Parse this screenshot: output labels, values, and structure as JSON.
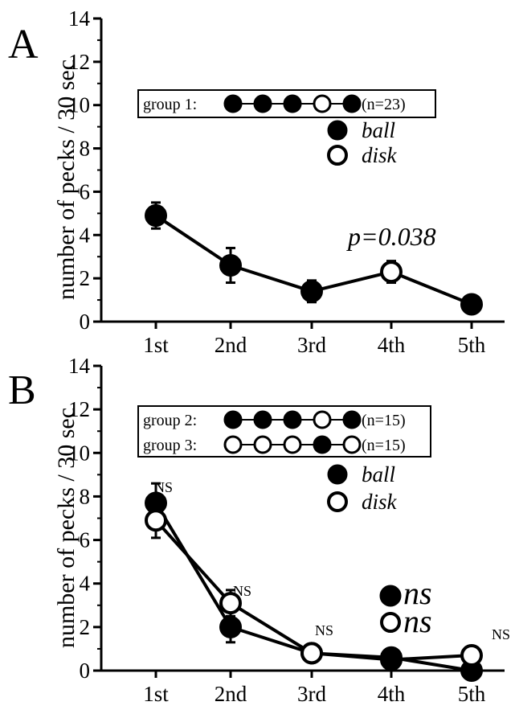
{
  "chart_data": [
    {
      "panel": "A",
      "type": "line",
      "ylabel": "number of pecks / 30 sec",
      "ylim": [
        0,
        14
      ],
      "yticks": [
        "0",
        "2",
        "4",
        "6",
        "8",
        "10",
        "12",
        "14"
      ],
      "categories": [
        "1st",
        "2nd",
        "3rd",
        "4th",
        "5th"
      ],
      "legend_rows": [
        {
          "label": "group 1:",
          "pattern": [
            "ball",
            "ball",
            "ball",
            "disk",
            "ball"
          ],
          "n": "(n=23)"
        }
      ],
      "key": {
        "ball": "ball",
        "disk": "disk"
      },
      "series": [
        {
          "values": [
            4.9,
            2.6,
            1.4,
            2.3,
            0.8
          ],
          "err": [
            0.6,
            0.8,
            0.5,
            0.5,
            0.2
          ],
          "markers": [
            "ball",
            "ball",
            "ball",
            "disk",
            "ball"
          ]
        }
      ],
      "annotation": "p=0.038"
    },
    {
      "panel": "B",
      "type": "line",
      "ylabel": "number of pecks / 30 sec",
      "ylim": [
        0,
        14
      ],
      "yticks": [
        "0",
        "2",
        "4",
        "6",
        "8",
        "10",
        "12",
        "14"
      ],
      "categories": [
        "1st",
        "2nd",
        "3rd",
        "4th",
        "5th"
      ],
      "legend_rows": [
        {
          "label": "group 2:",
          "pattern": [
            "ball",
            "ball",
            "ball",
            "disk",
            "ball"
          ],
          "n": "(n=15)"
        },
        {
          "label": "group 3:",
          "pattern": [
            "disk",
            "disk",
            "disk",
            "ball",
            "disk"
          ],
          "n": "(n=15)"
        }
      ],
      "key": {
        "ball": "ball",
        "disk": "disk"
      },
      "series": [
        {
          "values": [
            7.7,
            2.0,
            0.8,
            0.6,
            0.0
          ],
          "err": [
            0.9,
            0.7,
            0.2,
            0.2,
            0.1
          ],
          "markers": [
            "ball",
            "ball",
            "ball",
            "disk",
            "ball"
          ]
        },
        {
          "values": [
            6.9,
            3.1,
            0.8,
            0.5,
            0.7
          ],
          "err": [
            0.8,
            0.6,
            0.2,
            0.2,
            0.2
          ],
          "markers": [
            "disk",
            "disk",
            "disk",
            "ball",
            "disk"
          ]
        }
      ],
      "ns_labels": [
        "NS",
        "NS",
        "NS",
        "NS",
        "NS"
      ],
      "ns_key": "ns"
    }
  ]
}
